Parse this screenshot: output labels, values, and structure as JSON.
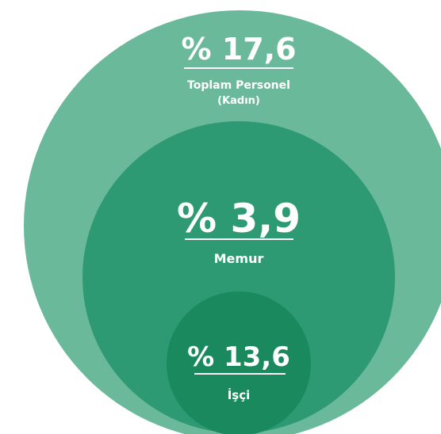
{
  "circles": [
    {
      "value": "% 17,6",
      "label_lines": [
        "Toplam Personel",
        "(Kadın)"
      ]
    },
    {
      "value": "% 3,9",
      "label_lines": [
        "Memur"
      ]
    },
    {
      "value": "% 13,6",
      "label_lines": [
        "İşçi"
      ]
    }
  ]
}
